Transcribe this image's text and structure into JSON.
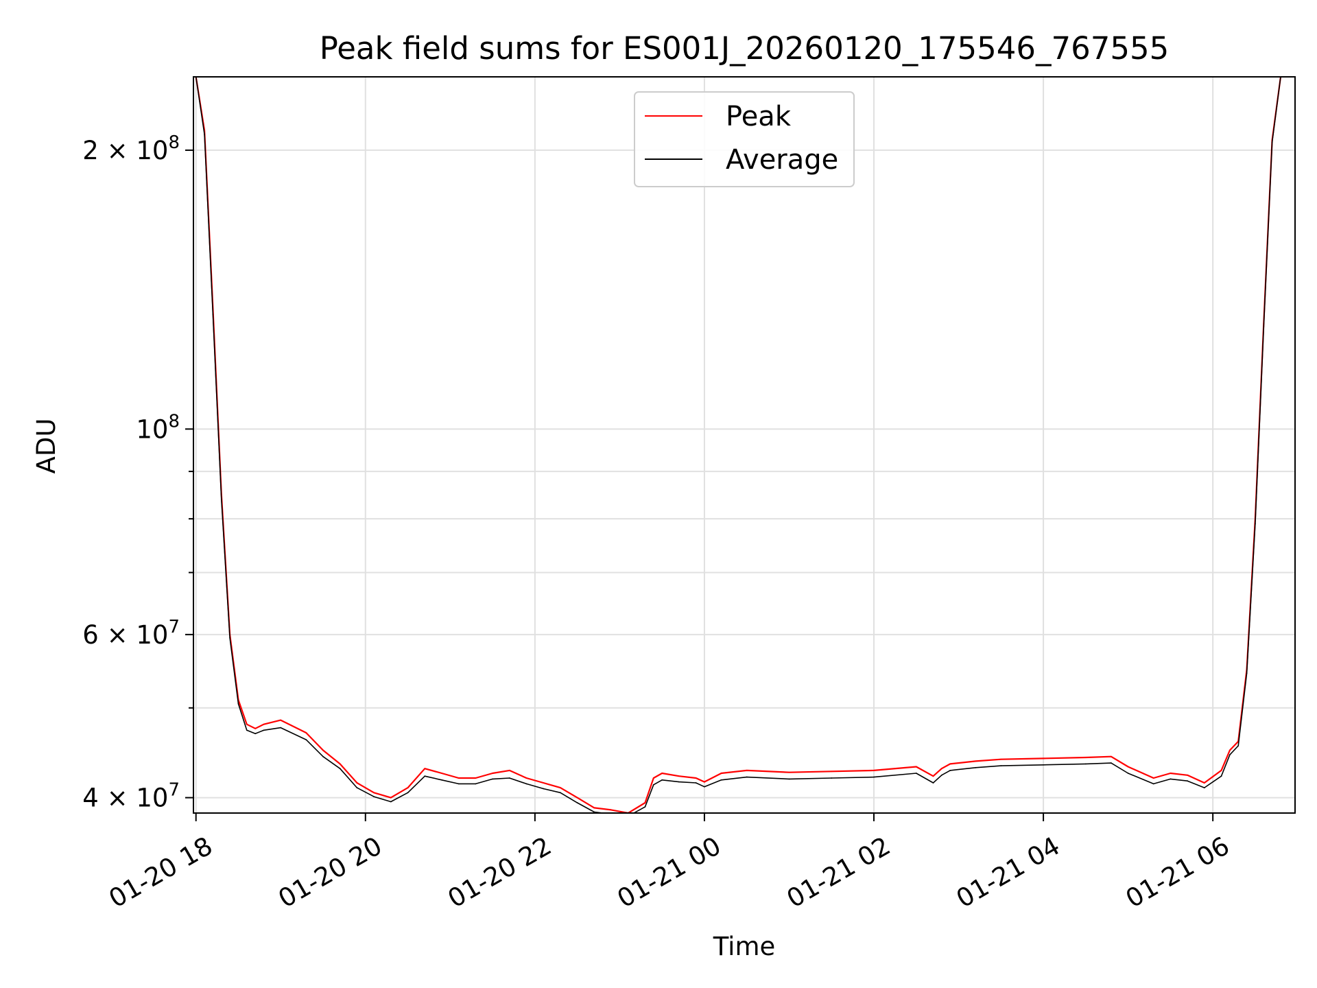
{
  "chart_data": {
    "type": "line",
    "title": "Peak field sums for ES001J_20260120_175546_767555",
    "xlabel": "Time",
    "ylabel": "ADU",
    "yscale": "log",
    "grid": true,
    "legend_position": "top-center",
    "xlim": [
      17.97,
      30.97
    ],
    "ylim": [
      38500000,
      240000000
    ],
    "x_ticks": [
      {
        "value": 18,
        "label": "01-20 18"
      },
      {
        "value": 20,
        "label": "01-20 20"
      },
      {
        "value": 22,
        "label": "01-20 22"
      },
      {
        "value": 24,
        "label": "01-21 00"
      },
      {
        "value": 26,
        "label": "01-21 02"
      },
      {
        "value": 28,
        "label": "01-21 04"
      },
      {
        "value": 30,
        "label": "01-21 06"
      }
    ],
    "y_ticks": [
      {
        "value": 40000000,
        "base": "4",
        "exp": "7"
      },
      {
        "value": 60000000,
        "base": "6",
        "exp": "7"
      },
      {
        "value": 100000000,
        "base": "",
        "exp": "8"
      },
      {
        "value": 200000000,
        "base": "2",
        "exp": "8"
      }
    ],
    "y_minor_ticks": [
      50000000,
      70000000,
      80000000,
      90000000
    ],
    "series": [
      {
        "name": "Peak",
        "color": "#ff0000",
        "x": [
          18.0,
          18.1,
          18.2,
          18.3,
          18.4,
          18.5,
          18.6,
          18.7,
          18.8,
          19.0,
          19.3,
          19.5,
          19.7,
          19.9,
          20.1,
          20.3,
          20.5,
          20.7,
          20.9,
          21.1,
          21.3,
          21.5,
          21.7,
          21.9,
          22.1,
          22.3,
          22.5,
          22.7,
          22.9,
          23.1,
          23.3,
          23.4,
          23.5,
          23.7,
          23.9,
          24.0,
          24.2,
          24.5,
          25.0,
          25.5,
          26.0,
          26.5,
          26.7,
          26.8,
          26.9,
          27.2,
          27.5,
          28.0,
          28.5,
          28.8,
          29.0,
          29.3,
          29.5,
          29.7,
          29.9,
          30.1,
          30.2,
          30.3,
          30.4,
          30.5,
          30.6,
          30.7,
          30.8
        ],
        "values": [
          240000000,
          210000000,
          135000000,
          85000000,
          60000000,
          51000000,
          48000000,
          47500000,
          48000000,
          48500000,
          47000000,
          45000000,
          43500000,
          41500000,
          40500000,
          40000000,
          41000000,
          43000000,
          42500000,
          42000000,
          42000000,
          42500000,
          42800000,
          42000000,
          41500000,
          41000000,
          40000000,
          39000000,
          38800000,
          38500000,
          39500000,
          42000000,
          42500000,
          42200000,
          42000000,
          41600000,
          42500000,
          42800000,
          42600000,
          42700000,
          42800000,
          43200000,
          42200000,
          43000000,
          43500000,
          43800000,
          44000000,
          44100000,
          44200000,
          44300000,
          43200000,
          42000000,
          42500000,
          42300000,
          41500000,
          42800000,
          45000000,
          46000000,
          55000000,
          80000000,
          130000000,
          205000000,
          240000000
        ]
      },
      {
        "name": "Average",
        "color": "#000000",
        "x": [
          18.0,
          18.1,
          18.2,
          18.3,
          18.4,
          18.5,
          18.6,
          18.7,
          18.8,
          19.0,
          19.3,
          19.5,
          19.7,
          19.9,
          20.1,
          20.3,
          20.5,
          20.7,
          20.9,
          21.1,
          21.3,
          21.5,
          21.7,
          21.9,
          22.1,
          22.3,
          22.5,
          22.7,
          22.9,
          23.1,
          23.3,
          23.4,
          23.5,
          23.7,
          23.9,
          24.0,
          24.2,
          24.5,
          25.0,
          25.5,
          26.0,
          26.5,
          26.7,
          26.8,
          26.9,
          27.2,
          27.5,
          28.0,
          28.5,
          28.8,
          29.0,
          29.3,
          29.5,
          29.7,
          29.9,
          30.1,
          30.2,
          30.3,
          30.4,
          30.5,
          30.6,
          30.7,
          30.8
        ],
        "values": [
          240000000,
          208000000,
          133000000,
          84000000,
          59500000,
          50500000,
          47300000,
          46900000,
          47300000,
          47600000,
          46200000,
          44300000,
          43000000,
          41000000,
          40100000,
          39600000,
          40500000,
          42200000,
          41800000,
          41400000,
          41400000,
          41900000,
          42000000,
          41400000,
          40900000,
          40500000,
          39500000,
          38600000,
          38400000,
          38200000,
          39100000,
          41300000,
          41800000,
          41600000,
          41500000,
          41100000,
          41800000,
          42100000,
          41900000,
          42000000,
          42100000,
          42500000,
          41500000,
          42300000,
          42800000,
          43100000,
          43300000,
          43400000,
          43500000,
          43600000,
          42500000,
          41400000,
          41900000,
          41700000,
          41000000,
          42200000,
          44500000,
          45500000,
          54500000,
          79000000,
          129000000,
          204000000,
          240000000
        ]
      }
    ]
  }
}
